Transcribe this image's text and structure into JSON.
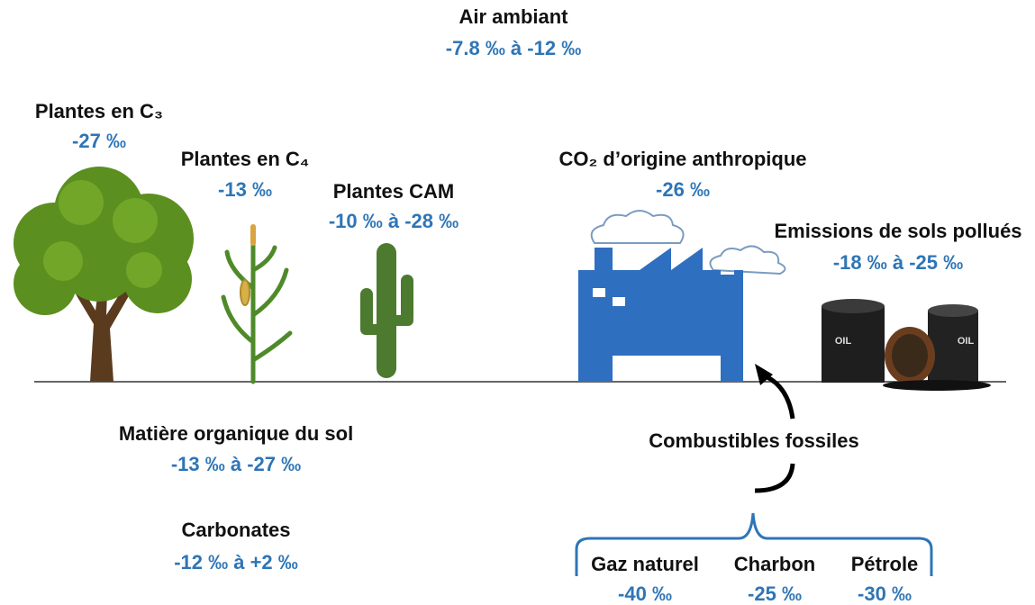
{
  "air": {
    "label": "Air ambiant",
    "value": "-7.8 ‰ à -12 ‰"
  },
  "plants": [
    {
      "label": "Plantes en C₃",
      "value": "-27 ‰"
    },
    {
      "label": "Plantes en C₄",
      "value": "-13 ‰"
    },
    {
      "label": "Plantes CAM",
      "value": "-10 ‰ à -28 ‰"
    }
  ],
  "anthropogenic": {
    "label": "CO₂ d’origine anthropique",
    "value": "-26 ‰"
  },
  "polluted_soils": {
    "label": "Emissions de sols pollués",
    "value": "-18 ‰ à -25 ‰"
  },
  "soil_organic_matter": {
    "label": "Matière organique du sol",
    "value": "-13 ‰ à -27 ‰"
  },
  "carbonates": {
    "label": "Carbonates",
    "value": "-12 ‰ à +2 ‰"
  },
  "fossil_fuels": {
    "label": "Combustibles fossiles",
    "items": [
      {
        "label": "Gaz naturel",
        "value": "-40 ‰"
      },
      {
        "label": "Charbon",
        "value": "-25 ‰"
      },
      {
        "label": "Pétrole",
        "value": "-30 ‰"
      }
    ]
  }
}
